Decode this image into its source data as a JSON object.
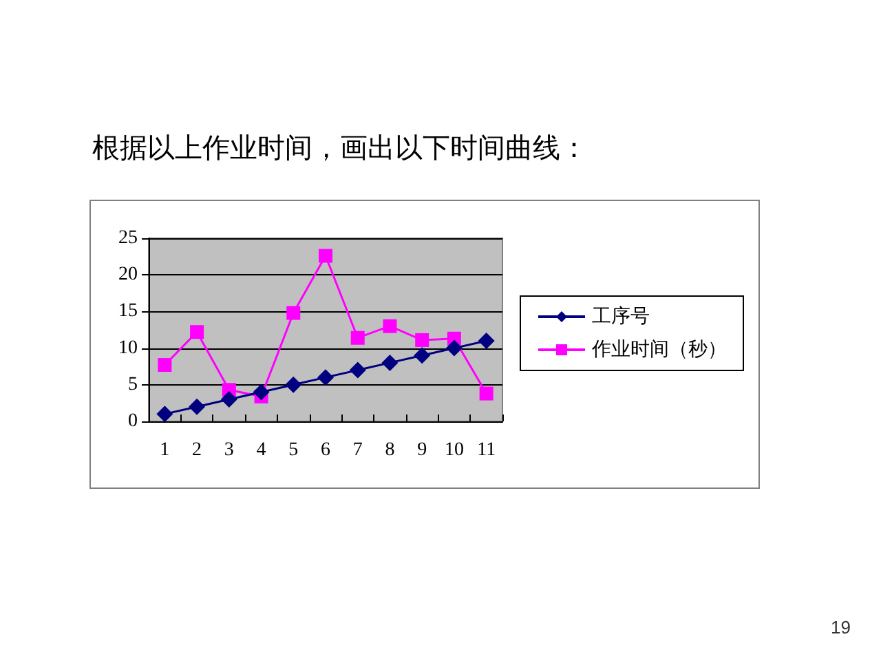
{
  "chart_data": {
    "type": "line",
    "title": "根据以上作业时间，画出以下时间曲线：",
    "categories": [
      "1",
      "2",
      "3",
      "4",
      "5",
      "6",
      "7",
      "8",
      "9",
      "10",
      "11"
    ],
    "series": [
      {
        "name": "工序号",
        "color": "#000080",
        "marker": "diamond",
        "values": [
          1,
          2,
          3,
          4,
          5,
          6,
          7,
          8,
          9,
          10,
          11
        ]
      },
      {
        "name": "作业时间（秒）",
        "color": "#ff00ff",
        "marker": "square",
        "values": [
          7.7,
          12.2,
          4.3,
          3.4,
          14.8,
          22.6,
          11.4,
          13.0,
          11.1,
          11.3,
          3.8
        ]
      }
    ],
    "ylim": [
      0,
      25
    ],
    "yticks": [
      0,
      5,
      10,
      15,
      20,
      25
    ],
    "grid": "y",
    "legend": "right",
    "line_style": "solid",
    "annotations": [
      "19"
    ]
  }
}
